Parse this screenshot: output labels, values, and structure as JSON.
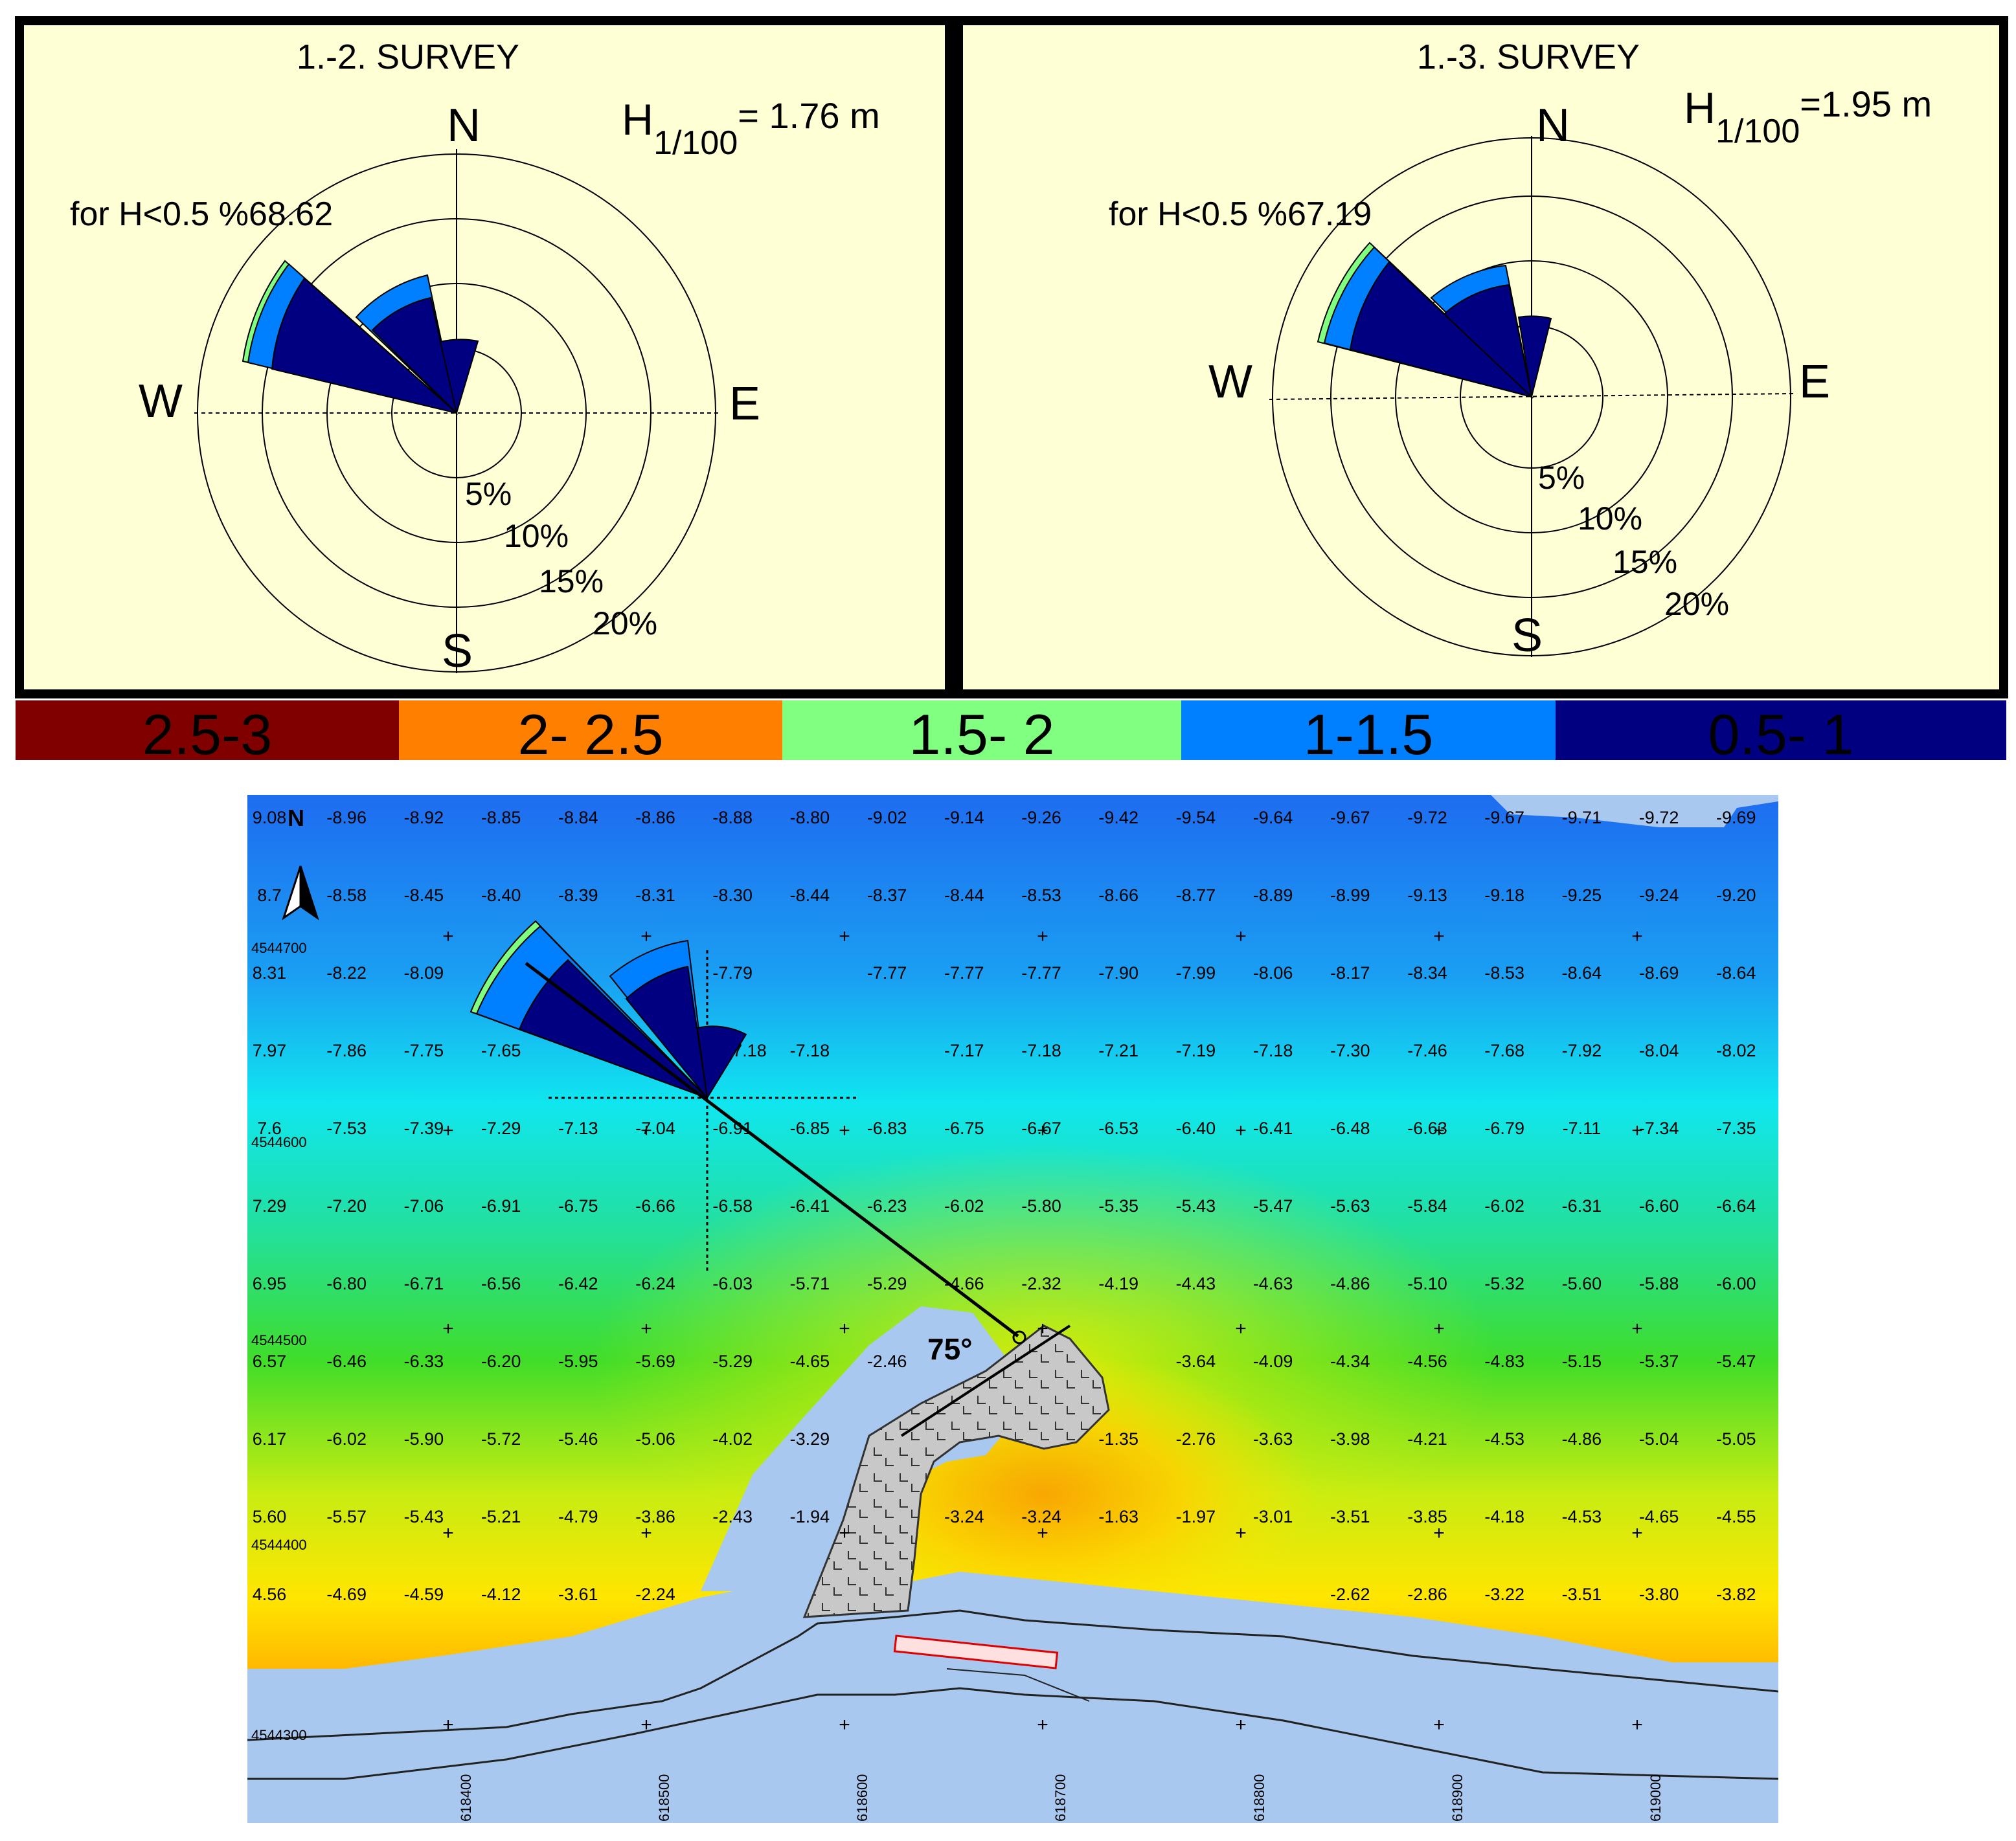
{
  "panels": [
    {
      "title": "1.-2. SURVEY",
      "h_label": "H",
      "h_sub": "1/100",
      "h_value": "=  1.76 m",
      "note": "for H<0.5 %68.62"
    },
    {
      "title": "1.-3. SURVEY",
      "h_label": "H",
      "h_sub": "1/100",
      "h_value": "=1.95 m",
      "note": "for H<0.5 %67.19"
    }
  ],
  "compass": {
    "n": "N",
    "e": "E",
    "s": "S",
    "w": "W"
  },
  "rings": [
    "5%",
    "10%",
    "15%",
    "20%"
  ],
  "legend": [
    {
      "label": "2.5-3",
      "color": "#800000"
    },
    {
      "label": "2- 2.5",
      "color": "#ff8000"
    },
    {
      "label": "1.5- 2",
      "color": "#80ff80"
    },
    {
      "label": "1-1.5",
      "color": "#0080ff"
    },
    {
      "label": "0.5- 1",
      "color": "#000080"
    }
  ],
  "map": {
    "north_label": "N",
    "angle_label": "75°",
    "y_labels": [
      "4544700",
      "4544600",
      "4544500",
      "4544400",
      "4544300"
    ],
    "x_labels": [
      "618400",
      "618500",
      "618600",
      "618700",
      "618800",
      "618900",
      "619000"
    ],
    "depth_rows": [
      [
        "9.08",
        "-8.96",
        "-8.92",
        "-8.85",
        "-8.84",
        "-8.86",
        "-8.88",
        "-8.80",
        "-9.02",
        "-9.14",
        "-9.26",
        "-9.42",
        "-9.54",
        "-9.64",
        "-9.67",
        "-9.72",
        "-9.67",
        "-9.71",
        "-9.72",
        "-9.69"
      ],
      [
        "8.7",
        "-8.58",
        "-8.45",
        "-8.40",
        "-8.39",
        "-8.31",
        "-8.30",
        "-8.44",
        "-8.37",
        "-8.44",
        "-8.53",
        "-8.66",
        "-8.77",
        "-8.89",
        "-8.99",
        "-9.13",
        "-9.18",
        "-9.25",
        "-9.24",
        "-9.20"
      ],
      [
        "8.31",
        "-8.22",
        "-8.09",
        "",
        "",
        "",
        "-7.79",
        "",
        "-7.77",
        "-7.77",
        "-7.77",
        "-7.90",
        "-7.99",
        "-8.06",
        "-8.17",
        "-8.34",
        "-8.53",
        "-8.64",
        "-8.69",
        "-8.64"
      ],
      [
        "7.97",
        "-7.86",
        "-7.75",
        "-7.65",
        "",
        "",
        "35 17.18",
        "-7.18",
        "",
        "-7.17",
        "-7.18",
        "-7.21",
        "-7.19",
        "-7.18",
        "-7.30",
        "-7.46",
        "-7.68",
        "-7.92",
        "-8.04",
        "-8.02"
      ],
      [
        "7.6",
        "-7.53",
        "-7.39",
        "-7.29",
        "-7.13",
        "-7.04",
        "-6.91",
        "-6.85",
        "-6.83",
        "-6.75",
        "-6.67",
        "-6.53",
        "-6.40",
        "-6.41",
        "-6.48",
        "-6.63",
        "-6.79",
        "-7.11",
        "-7.34",
        "-7.35"
      ],
      [
        "7.29",
        "-7.20",
        "-7.06",
        "-6.91",
        "-6.75",
        "-6.66",
        "-6.58",
        "-6.41",
        "-6.23",
        "-6.02",
        "-5.80",
        "-5.35",
        "-5.43",
        "-5.47",
        "-5.63",
        "-5.84",
        "-6.02",
        "-6.31",
        "-6.60",
        "-6.64"
      ],
      [
        "6.95",
        "-6.80",
        "-6.71",
        "-6.56",
        "-6.42",
        "-6.24",
        "-6.03",
        "-5.71",
        "-5.29",
        "-4.66",
        "-2.32",
        "-4.19",
        "-4.43",
        "-4.63",
        "-4.86",
        "-5.10",
        "-5.32",
        "-5.60",
        "-5.88",
        "-6.00"
      ],
      [
        "6.57",
        "-6.46",
        "-6.33",
        "-6.20",
        "-5.95",
        "-5.69",
        "-5.29",
        "-4.65",
        "-2.46",
        "",
        "",
        "",
        "-3.64",
        "-4.09",
        "-4.34",
        "-4.56",
        "-4.83",
        "-5.15",
        "-5.37",
        "-5.47"
      ],
      [
        "6.17",
        "-6.02",
        "-5.90",
        "-5.72",
        "-5.46",
        "-5.06",
        "-4.02",
        "-3.29",
        "",
        "",
        "",
        "-1.35",
        "-2.76",
        "-3.63",
        "-3.98",
        "-4.21",
        "-4.53",
        "-4.86",
        "-5.04",
        "-5.05"
      ],
      [
        "5.60",
        "-5.57",
        "-5.43",
        "-5.21",
        "-4.79",
        "-3.86",
        "-2.43",
        "-1.94",
        "",
        "-3.24",
        "-3.24",
        "-1.63",
        "-1.97",
        "-3.01",
        "-3.51",
        "-3.85",
        "-4.18",
        "-4.53",
        "-4.65",
        "-4.55"
      ],
      [
        "4.56",
        "-4.69",
        "-4.59",
        "-4.12",
        "-3.61",
        "-2.24",
        "",
        "",
        "",
        "",
        "",
        "",
        "",
        "",
        "-2.62",
        "-2.86",
        "-3.22",
        "-3.51",
        "-3.80",
        "-3.82"
      ]
    ]
  }
}
